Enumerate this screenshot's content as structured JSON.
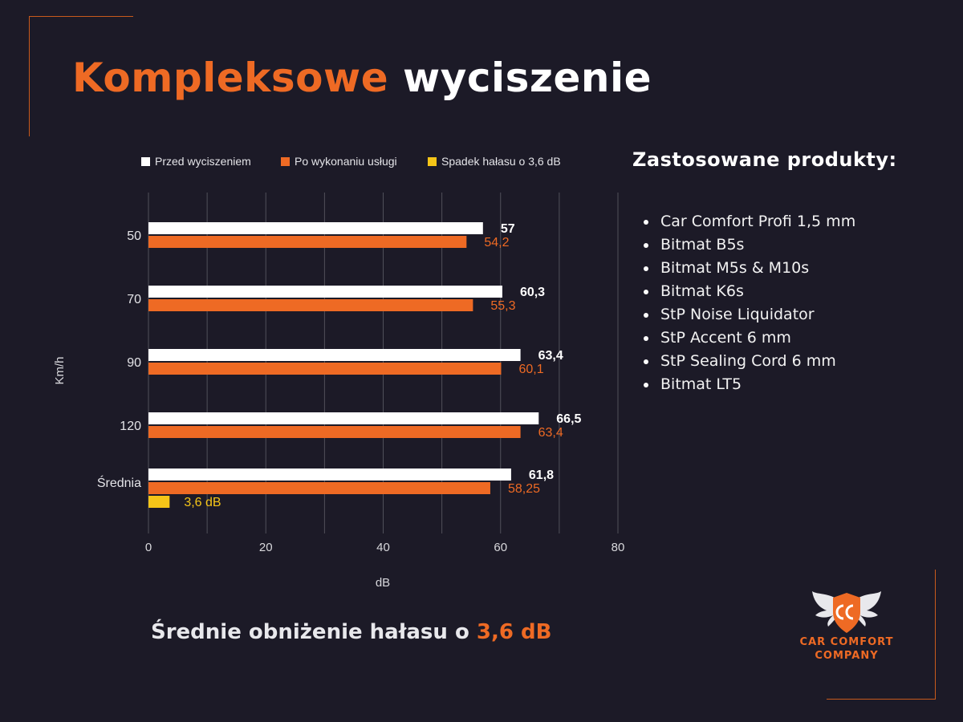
{
  "title": {
    "part1": "Kompleksowe",
    "part2": "wyciszenie"
  },
  "colors": {
    "background": "#1c1a27",
    "accent": "#ee6a24",
    "before": "#ffffff",
    "after": "#ee6a24",
    "drop": "#f5c518",
    "grid": "#50505a"
  },
  "chart_data": {
    "type": "bar",
    "orientation": "horizontal",
    "categories": [
      "50",
      "70",
      "90",
      "120",
      "Średnia"
    ],
    "series": [
      {
        "name": "Przed wyciszeniem",
        "color": "#ffffff",
        "values": [
          57,
          60.3,
          63.4,
          66.5,
          61.8
        ],
        "labels": [
          "57",
          "60,3",
          "63,4",
          "66,5",
          "61,8"
        ]
      },
      {
        "name": "Po wykonaniu usługi",
        "color": "#ee6a24",
        "values": [
          54.2,
          55.3,
          60.1,
          63.4,
          58.25
        ],
        "labels": [
          "54,2",
          "55,3",
          "60,1",
          "63,4",
          "58,25"
        ]
      },
      {
        "name": "Spadek hałasu o 3,6 dB",
        "color": "#f5c518",
        "values": [
          null,
          null,
          null,
          null,
          3.6
        ],
        "labels": [
          "",
          "",
          "",
          "",
          "3,6 dB"
        ]
      }
    ],
    "xlabel": "dB",
    "ylabel": "Km/h",
    "xlim": [
      0,
      80
    ],
    "xticks": [
      0,
      20,
      40,
      60,
      80
    ],
    "grid": true,
    "legend": "top"
  },
  "products": {
    "heading": "Zastosowane produkty:",
    "items": [
      "Car Comfort Profi 1,5 mm",
      "Bitmat B5s",
      "Bitmat M5s & M10s",
      "Bitmat K6s",
      "StP Noise Liquidator",
      "StP Accent 6 mm",
      "StP Sealing Cord 6 mm",
      "Bitmat LT5"
    ]
  },
  "summary": {
    "text": "Średnie obniżenie hałasu o ",
    "highlight": "3,6 dB"
  },
  "logo": {
    "line1": "CAR COMFORT",
    "line2": "COMPANY",
    "icon": "winged-cc-shield-icon"
  }
}
